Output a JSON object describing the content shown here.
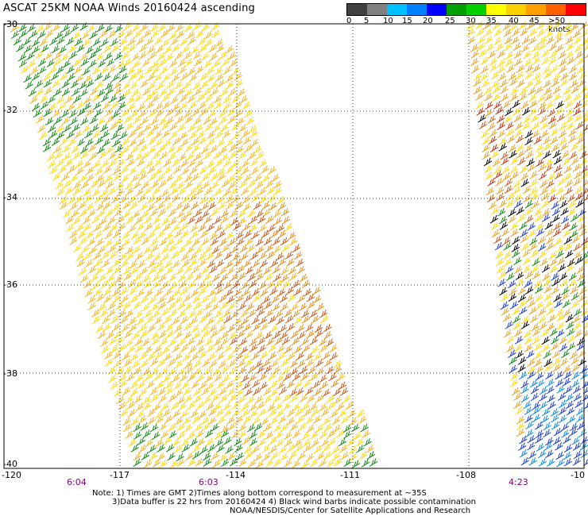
{
  "title": "ASCAT 25KM NOAA Winds 20160424 ascending",
  "legend": {
    "colors": [
      "#404040",
      "#808080",
      "#00c0ff",
      "#0080ff",
      "#0000ff",
      "#00a000",
      "#00d000",
      "#ffff00",
      "#ffd000",
      "#ffa000",
      "#ff6000",
      "#ff0000",
      "#c00000",
      "#a04000",
      "#ff00ff",
      "#c000c0",
      "#8000a0",
      "#400080"
    ],
    "labels": [
      "0",
      "5",
      "10",
      "15",
      "20",
      "25",
      "30",
      "35",
      "40",
      "45",
      ">50 knots"
    ]
  },
  "axes": {
    "lat_labels": [
      "-30",
      "-32",
      "-34",
      "-36",
      "-38",
      "-40"
    ],
    "lon_labels": [
      "-120",
      "-117",
      "-114",
      "-111",
      "-108",
      "-10"
    ]
  },
  "times": [
    "6:04",
    "6:03",
    "4:23"
  ],
  "notes": [
    "Note: 1) Times are GMT 2)Times along bottom correspond to measurement at ~35S",
    "3)Data buffer is 22 hrs from 20160424 4) Black wind barbs indicate possible contamination",
    "NOAA/NESDIS/Center for Satellite Applications and Research"
  ],
  "swaths": [
    {
      "name": "west-swath",
      "from_time": "6:04",
      "to_time": "6:03"
    },
    {
      "name": "east-swath",
      "time": "4:23"
    }
  ]
}
